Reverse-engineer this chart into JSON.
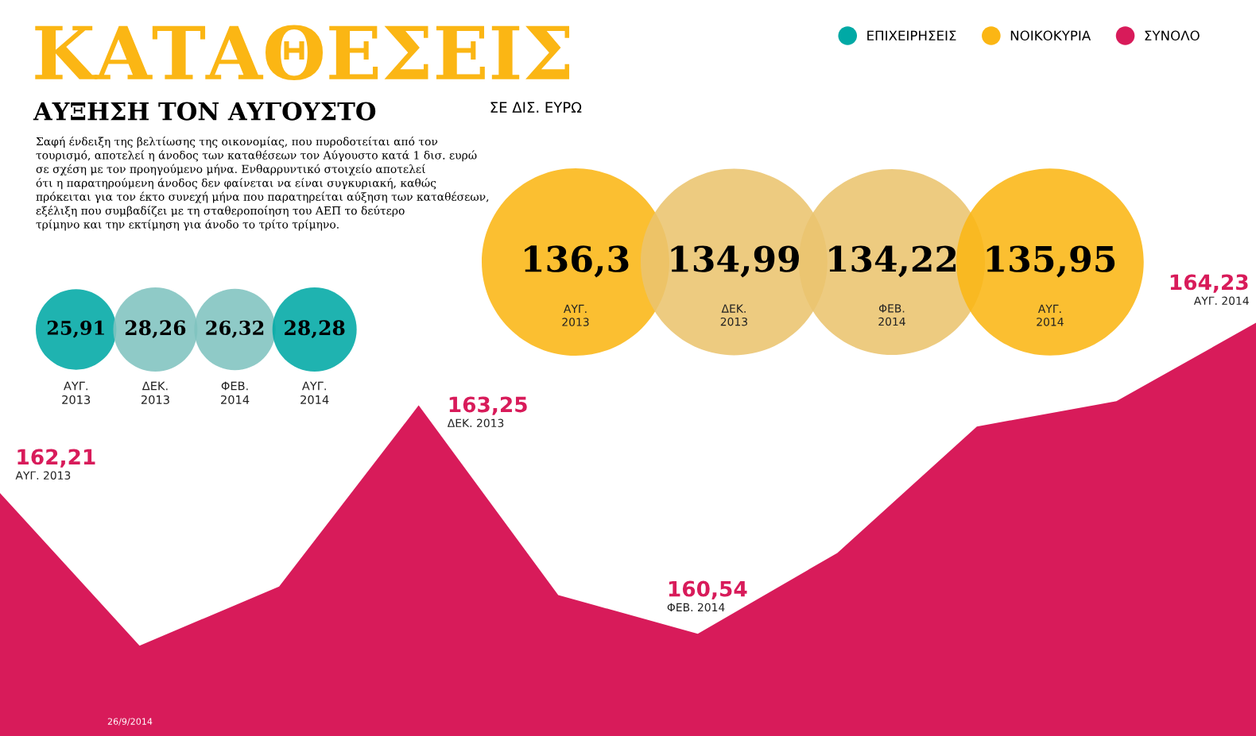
{
  "chart_data": [
    {
      "type": "other",
      "title": "ΚΑΤΑΘΕΣΕΙΣ",
      "subtitle": "ΑΥΞΗΣΗ ΤΟΝ ΑΥΓΟΥΣΤΟ",
      "annotations": [
        "Σαφή ένδειξη της βελτίωσης της οικονομίας, που πυροδοτείται από τον\nτουρισμό, αποτελεί η άνοδος των καταθέσεων τον Αύγουστο κατά 1 δισ. ευρώ\nσε σχέση με τον προηγούμενο μήνα. Ενθαρρυντικό στοιχείο αποτελεί\nότι η παρατηρούμενη άνοδος δεν φαίνεται να είναι συγκυριακή, καθώς\nπρόκειται για τον έκτο συνεχή μήνα που παρατηρείται αύξηση των καταθέσεων,\nεξέλιξη που συμβαδίζει με τη σταθεροποίηση του ΑΕΠ το δεύτερο\nτρίμηνο και την εκτίμηση για άνοδο το τρίτο τρίμηνο."
      ],
      "legend": "top right",
      "categories": [
        "ΑΥΓ. 2013",
        "ΔΕΚ. 2013",
        "ΦΕΒ. 2014",
        "ΑΥΓ. 2014"
      ],
      "series": [
        {
          "name": "ΕΠΙΧΕΙΡΗΣΕΙΣ",
          "color": "#00a9a5",
          "values": [
            25.91,
            28.26,
            26.32,
            28.28
          ],
          "value_labels": [
            "25,91",
            "28,26",
            "26,32",
            "28,28"
          ],
          "colors": [
            "#00a9a5",
            "#80c3bf",
            "#80c3bf",
            "#00a9a5"
          ]
        }
      ]
    },
    {
      "type": "other",
      "annotations": [
        "ΣΕ ΔΙΣ. ΕΥΡΩ"
      ],
      "categories": [
        "ΑΥΓ. 2013",
        "ΔΕΚ. 2013",
        "ΦΕΒ. 2014",
        "ΑΥΓ. 2014"
      ],
      "series": [
        {
          "name": "ΝΟΙΚΟΚΥΡΙΑ",
          "color": "#fbb614",
          "values": [
            136.3,
            134.99,
            134.22,
            135.95
          ],
          "value_labels": [
            "136,3",
            "134,99",
            "134,22",
            "135,95"
          ],
          "colors": [
            "#fbb614",
            "#ebc46e",
            "#ebc46e",
            "#fbb614"
          ]
        }
      ]
    },
    {
      "type": "area",
      "annotations": [
        "26/9/2014",
        "ΑΥΓ. 2013",
        "ΔΕΚ. 2013",
        "ΦΕΒ. 2014",
        "ΑΥΓ. 2014"
      ],
      "categories": [
        null,
        null,
        null,
        null,
        null,
        null,
        null,
        null,
        null,
        null
      ],
      "series": [
        {
          "name": "ΣΥΝΟΛΟ",
          "color": "#d81b5a",
          "values": [
            162.21,
            160.4,
            161.1,
            163.25,
            161.0,
            160.54,
            161.5,
            163.0,
            163.3,
            164.23
          ],
          "value_labels": [
            "162,21",
            null,
            null,
            "163,25",
            null,
            "160,54",
            null,
            null,
            null,
            "164,23"
          ]
        }
      ]
    }
  ]
}
